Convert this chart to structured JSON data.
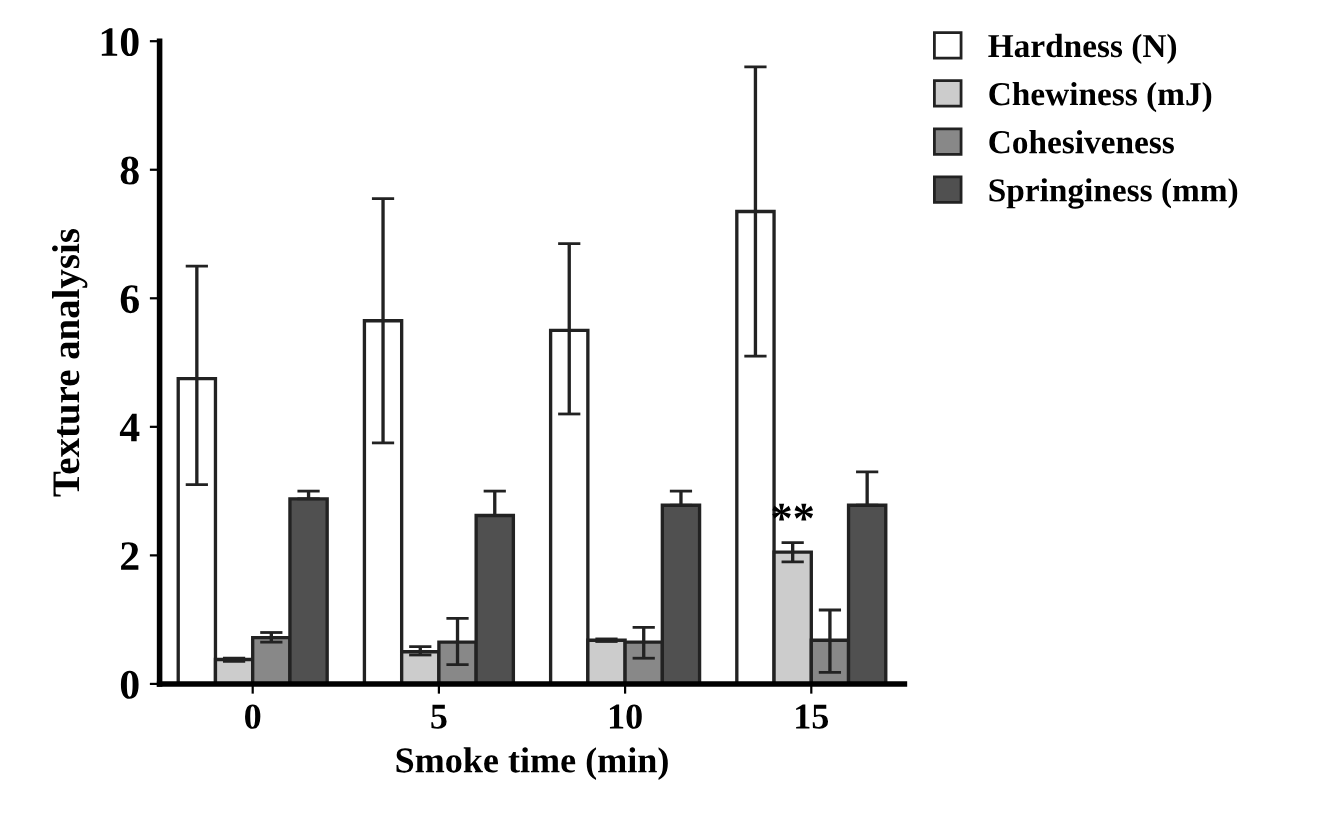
{
  "chart_data": {
    "type": "bar",
    "xlabel": "Smoke time (min)",
    "ylabel": "Texture analysis",
    "categories": [
      "0",
      "5",
      "10",
      "15"
    ],
    "series": [
      {
        "name": "Hardness (N)",
        "color": "#ffffff",
        "values": [
          4.75,
          5.65,
          5.5,
          7.35
        ],
        "errors": [
          [
            3.1,
            6.5
          ],
          [
            3.75,
            7.55
          ],
          [
            4.2,
            6.85
          ],
          [
            5.1,
            9.6
          ]
        ]
      },
      {
        "name": "Chewiness (mJ)",
        "color": "#cccccc",
        "values": [
          0.38,
          0.5,
          0.68,
          2.05
        ],
        "errors": [
          [
            0.35,
            0.4
          ],
          [
            0.45,
            0.58
          ],
          [
            0.66,
            0.7
          ],
          [
            1.9,
            2.2
          ]
        ]
      },
      {
        "name": "Cohesiveness",
        "color": "#888888",
        "values": [
          0.72,
          0.65,
          0.65,
          0.68
        ],
        "errors": [
          [
            0.65,
            0.8
          ],
          [
            0.3,
            1.02
          ],
          [
            0.4,
            0.88
          ],
          [
            0.18,
            1.15
          ]
        ]
      },
      {
        "name": "Springiness (mm)",
        "color": "#505050",
        "values": [
          2.88,
          2.62,
          2.78,
          2.78
        ],
        "errors": [
          [
            2.88,
            3.0
          ],
          [
            2.62,
            3.0
          ],
          [
            2.78,
            3.0
          ],
          [
            2.78,
            3.3
          ]
        ]
      }
    ],
    "ylim": [
      0,
      10
    ],
    "yticks": [
      0,
      2,
      4,
      6,
      8,
      10
    ],
    "grid": false,
    "legend": "top right",
    "annotations": [
      {
        "text": "**",
        "x": "15",
        "y": 2.2
      }
    ]
  }
}
